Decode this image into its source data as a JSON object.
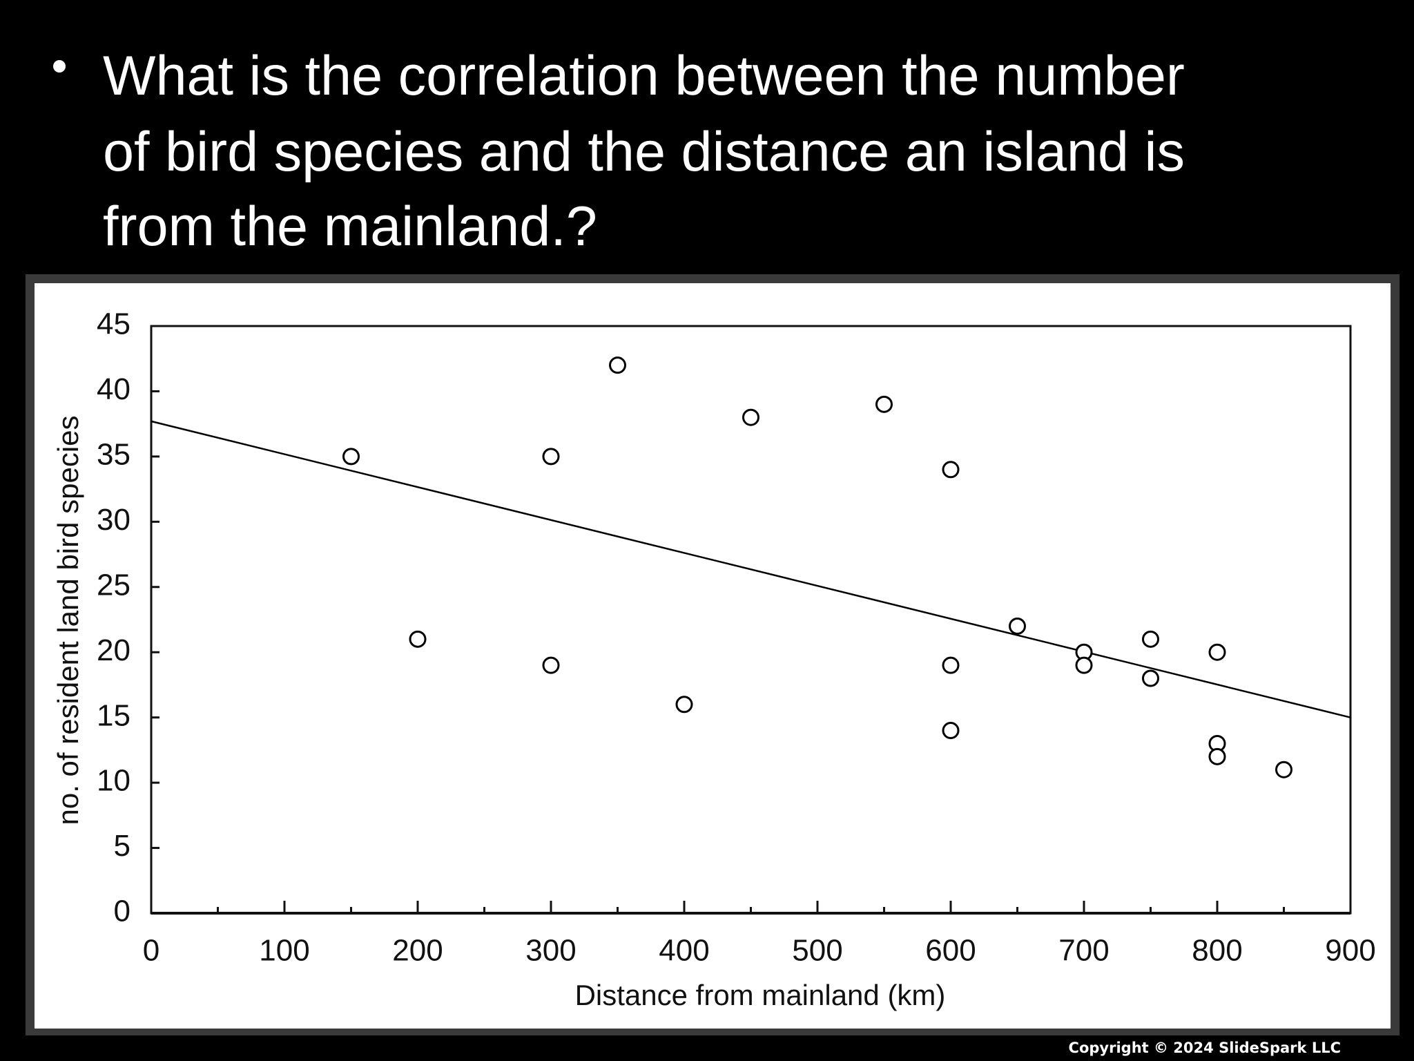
{
  "slide": {
    "bullet_lines": [
      "What is the correlation between the number",
      "of bird species and the distance an island is",
      "from the mainland.?"
    ],
    "copyright": "Copyright © 2024 SlideSpark LLC"
  },
  "chart_data": {
    "type": "scatter",
    "x_label": "Distance from mainland (km)",
    "y_label": "no. of resident land bird species",
    "x": [
      150,
      200,
      300,
      300,
      350,
      400,
      450,
      550,
      600,
      600,
      600,
      650,
      700,
      700,
      750,
      750,
      800,
      800,
      800,
      850
    ],
    "values": [
      35,
      21,
      35,
      19,
      42,
      16,
      38,
      39,
      34,
      19,
      14,
      22,
      20,
      19,
      21,
      18,
      20,
      13,
      12,
      11
    ],
    "trendline": {
      "x": [
        0,
        900
      ],
      "values": [
        37.7,
        15
      ]
    },
    "xlim": [
      0,
      900
    ],
    "xticks": [
      0,
      100,
      200,
      300,
      400,
      500,
      600,
      700,
      800,
      900
    ],
    "ylim": [
      0,
      45
    ],
    "yticks": [
      0,
      5,
      10,
      15,
      20,
      25,
      30,
      35,
      40,
      45
    ],
    "color": "#000000"
  }
}
